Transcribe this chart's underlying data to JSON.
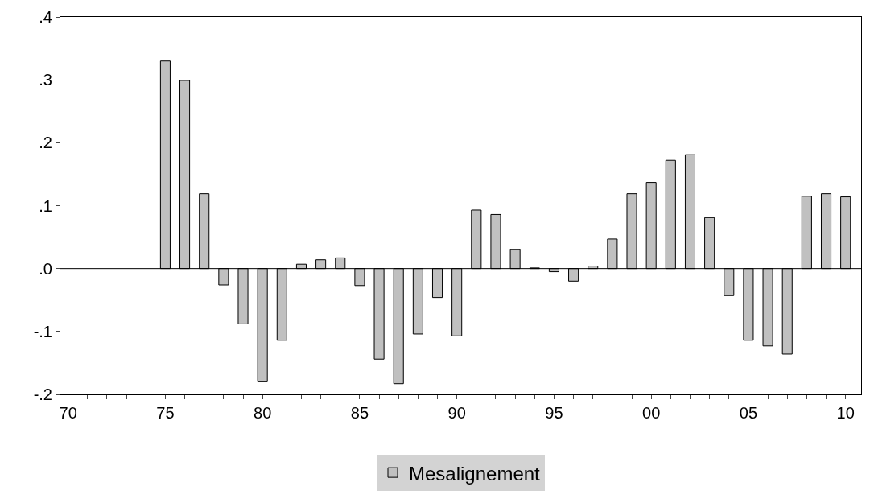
{
  "chart_data": {
    "type": "bar",
    "x": [
      1975,
      1976,
      1977,
      1978,
      1979,
      1980,
      1981,
      1982,
      1983,
      1984,
      1985,
      1986,
      1987,
      1988,
      1989,
      1990,
      1991,
      1992,
      1993,
      1994,
      1995,
      1996,
      1997,
      1998,
      1999,
      2000,
      2001,
      2002,
      2003,
      2004,
      2005,
      2006,
      2007,
      2008,
      2009,
      2010
    ],
    "series": [
      {
        "name": "Mesalignement",
        "color": "#c0c0c0",
        "values": [
          0.33,
          0.299,
          0.119,
          -0.026,
          -0.088,
          -0.18,
          -0.114,
          0.007,
          0.014,
          0.017,
          -0.027,
          -0.144,
          -0.183,
          -0.104,
          -0.046,
          -0.107,
          0.093,
          0.086,
          0.03,
          0.001,
          -0.005,
          -0.02,
          0.004,
          0.047,
          0.119,
          0.137,
          0.172,
          0.181,
          0.081,
          -0.043,
          -0.114,
          -0.123,
          -0.136,
          0.115,
          0.119,
          0.114
        ]
      }
    ],
    "xlim": [
      1969.6,
      2010.8
    ],
    "xticks": [
      {
        "value": 1970,
        "label": "70"
      },
      {
        "value": 1971,
        "label": null
      },
      {
        "value": 1972,
        "label": null
      },
      {
        "value": 1973,
        "label": null
      },
      {
        "value": 1974,
        "label": null
      },
      {
        "value": 1975,
        "label": "75"
      },
      {
        "value": 1976,
        "label": null
      },
      {
        "value": 1977,
        "label": null
      },
      {
        "value": 1978,
        "label": null
      },
      {
        "value": 1979,
        "label": null
      },
      {
        "value": 1980,
        "label": "80"
      },
      {
        "value": 1981,
        "label": null
      },
      {
        "value": 1982,
        "label": null
      },
      {
        "value": 1983,
        "label": null
      },
      {
        "value": 1984,
        "label": null
      },
      {
        "value": 1985,
        "label": "85"
      },
      {
        "value": 1986,
        "label": null
      },
      {
        "value": 1987,
        "label": null
      },
      {
        "value": 1988,
        "label": null
      },
      {
        "value": 1989,
        "label": null
      },
      {
        "value": 1990,
        "label": "90"
      },
      {
        "value": 1991,
        "label": null
      },
      {
        "value": 1992,
        "label": null
      },
      {
        "value": 1993,
        "label": null
      },
      {
        "value": 1994,
        "label": null
      },
      {
        "value": 1995,
        "label": "95"
      },
      {
        "value": 1996,
        "label": null
      },
      {
        "value": 1997,
        "label": null
      },
      {
        "value": 1998,
        "label": null
      },
      {
        "value": 1999,
        "label": null
      },
      {
        "value": 2000,
        "label": "00"
      },
      {
        "value": 2001,
        "label": null
      },
      {
        "value": 2002,
        "label": null
      },
      {
        "value": 2003,
        "label": null
      },
      {
        "value": 2004,
        "label": null
      },
      {
        "value": 2005,
        "label": "05"
      },
      {
        "value": 2006,
        "label": null
      },
      {
        "value": 2007,
        "label": null
      },
      {
        "value": 2008,
        "label": null
      },
      {
        "value": 2009,
        "label": null
      },
      {
        "value": 2010,
        "label": "10"
      }
    ],
    "ylim": [
      -0.2,
      0.4
    ],
    "yticks": [
      {
        "value": -0.2,
        "label": "-.2"
      },
      {
        "value": -0.1,
        "label": "-.1"
      },
      {
        "value": 0.0,
        "label": ".0"
      },
      {
        "value": 0.1,
        "label": ".1"
      },
      {
        "value": 0.2,
        "label": ".2"
      },
      {
        "value": 0.3,
        "label": ".3"
      },
      {
        "value": 0.4,
        "label": ".4"
      }
    ],
    "ref_lines": [
      {
        "axis": "y",
        "value": 0,
        "color": "#000000"
      }
    ],
    "legend": "bottom"
  }
}
